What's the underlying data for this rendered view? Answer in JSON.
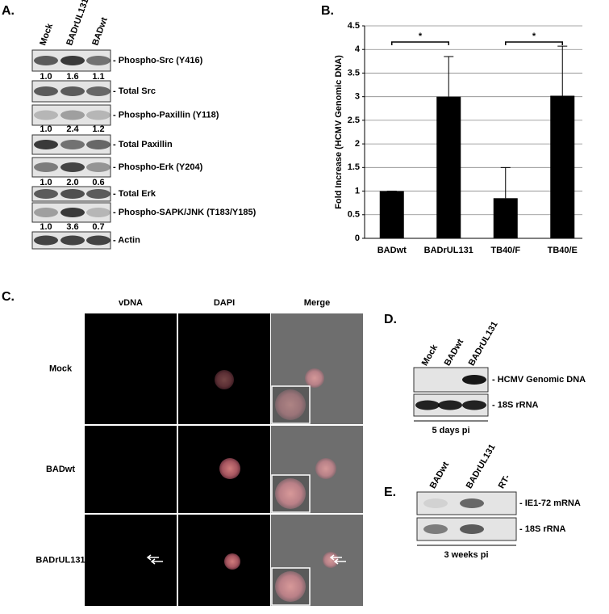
{
  "panel_a": {
    "label": "A.",
    "lanes": [
      "Mock",
      "BADrUL131",
      "BADwt"
    ],
    "blots": [
      {
        "label": "- Phospho-Src (Y416)",
        "quantification": [
          "1.0",
          "1.6",
          "1.1"
        ]
      },
      {
        "label": "- Total Src"
      },
      {
        "label": "- Phospho-Paxillin (Y118)",
        "quantification": [
          "1.0",
          "2.4",
          "1.2"
        ]
      },
      {
        "label": "- Total Paxillin"
      },
      {
        "label": "- Phospho-Erk (Y204)",
        "quantification": [
          "1.0",
          "2.0",
          "0.6"
        ]
      },
      {
        "label": "- Total Erk"
      },
      {
        "label": "- Phospho-SAPK/JNK (T183/Y185)",
        "quantification": [
          "1.0",
          "3.6",
          "0.7"
        ]
      },
      {
        "label": "- Actin"
      }
    ]
  },
  "chart_data": {
    "type": "bar",
    "label": "B.",
    "y_label": "Fold Increase (HCMV Genomic DNA)",
    "categories": [
      "BADwt",
      "BADrUL131",
      "TB40/F",
      "TB40/E"
    ],
    "values": [
      1.0,
      3.0,
      0.85,
      3.02
    ],
    "errors": [
      0.0,
      0.85,
      0.65,
      1.05
    ],
    "color": "#000000",
    "ylim": [
      0,
      4.5
    ],
    "yticks": [
      0,
      0.5,
      1,
      1.5,
      2,
      2.5,
      3,
      3.5,
      4,
      4.5
    ],
    "grid": true,
    "annotations": [
      "*",
      "*"
    ]
  },
  "panel_c": {
    "label": "C.",
    "columns": [
      "vDNA",
      "DAPI",
      "Merge"
    ],
    "rows": [
      "Mock",
      "BADwt",
      "BADrUL131"
    ]
  },
  "panel_d": {
    "label": "D.",
    "lanes": [
      "Mock",
      "BADwt",
      "BADrUL131"
    ],
    "blots": [
      "- HCMV Genomic DNA",
      "- 18S rRNA"
    ],
    "footer": "5 days pi"
  },
  "panel_e": {
    "label": "E.",
    "lanes": [
      "BADwt",
      "BADrUL131",
      "RT-"
    ],
    "blots": [
      "- IE1-72 mRNA",
      "- 18S rRNA"
    ],
    "footer": "3 weeks pi"
  }
}
